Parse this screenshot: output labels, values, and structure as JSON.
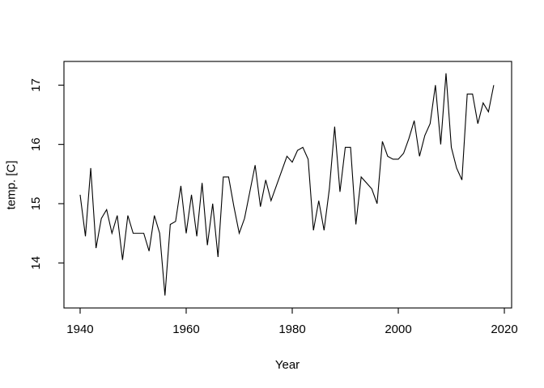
{
  "chart_data": {
    "type": "line",
    "title": "",
    "xlabel": "Year",
    "ylabel": "temp. [C]",
    "line_color": "#000000",
    "background_color": "#ffffff",
    "grid": false,
    "legend": false,
    "x_ticks": [
      1940,
      1960,
      1980,
      2000,
      2020
    ],
    "y_ticks": [
      14,
      15,
      16,
      17
    ],
    "xlim": [
      1936.95,
      2021.37
    ],
    "ylim": [
      13.24,
      17.4
    ],
    "x": [
      1940,
      1941,
      1942,
      1943,
      1944,
      1945,
      1946,
      1947,
      1948,
      1949,
      1950,
      1951,
      1952,
      1953,
      1954,
      1955,
      1956,
      1957,
      1958,
      1959,
      1960,
      1961,
      1962,
      1963,
      1964,
      1965,
      1966,
      1967,
      1968,
      1969,
      1970,
      1971,
      1972,
      1973,
      1974,
      1975,
      1976,
      1977,
      1978,
      1979,
      1980,
      1981,
      1982,
      1983,
      1984,
      1985,
      1986,
      1987,
      1988,
      1989,
      1990,
      1991,
      1992,
      1993,
      1994,
      1995,
      1996,
      1997,
      1998,
      1999,
      2000,
      2001,
      2002,
      2003,
      2004,
      2005,
      2006,
      2007,
      2008,
      2009,
      2010,
      2011,
      2012,
      2013,
      2014,
      2015,
      2016,
      2017,
      2018
    ],
    "values": [
      15.15,
      14.45,
      15.6,
      14.25,
      14.75,
      14.9,
      14.5,
      14.8,
      14.05,
      14.8,
      14.5,
      14.5,
      14.5,
      14.2,
      14.8,
      14.5,
      13.45,
      14.65,
      14.7,
      15.3,
      14.5,
      15.15,
      14.45,
      15.35,
      14.3,
      15.0,
      14.1,
      15.45,
      15.45,
      14.95,
      14.5,
      14.75,
      15.2,
      15.65,
      14.95,
      15.4,
      15.05,
      15.3,
      15.55,
      15.8,
      15.7,
      15.9,
      15.95,
      15.75,
      14.55,
      15.05,
      14.55,
      15.25,
      16.3,
      15.2,
      15.95,
      15.95,
      14.65,
      15.45,
      15.35,
      15.25,
      15.0,
      16.05,
      15.8,
      15.75,
      15.75,
      15.85,
      16.1,
      16.4,
      15.8,
      16.15,
      16.35,
      17.0,
      16.0,
      17.2,
      15.95,
      15.6,
      15.4,
      16.85,
      16.85,
      16.35,
      16.7,
      16.55,
      17.0
    ]
  }
}
